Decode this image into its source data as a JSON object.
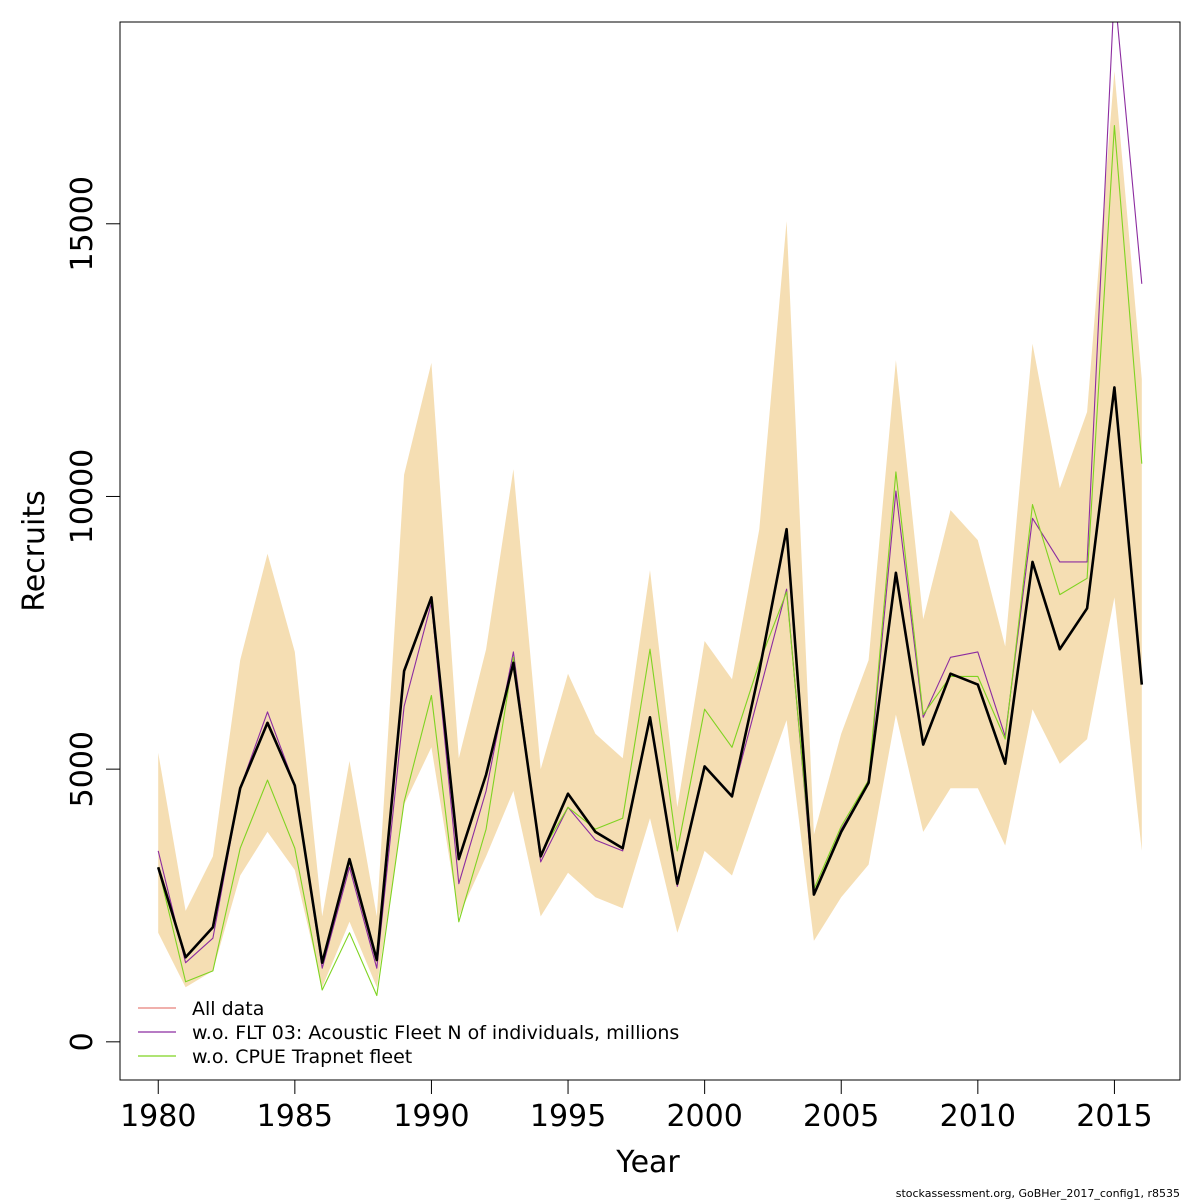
{
  "chart_data": {
    "type": "line",
    "xlabel": "Year",
    "ylabel": "Recruits",
    "xlim": [
      1978.6,
      2017.4
    ],
    "ylim": [
      -700,
      18700
    ],
    "x_ticks": [
      1980,
      1985,
      1990,
      1995,
      2000,
      2005,
      2010,
      2015
    ],
    "x_tick_labels": [
      "1980",
      "1985",
      "1990",
      "1995",
      "2000",
      "2005",
      "2010",
      "2015"
    ],
    "y_ticks": [
      0,
      5000,
      10000,
      15000
    ],
    "y_tick_labels": [
      "0",
      "5000",
      "10000",
      "15000"
    ],
    "x": [
      1980,
      1981,
      1982,
      1983,
      1984,
      1985,
      1986,
      1987,
      1988,
      1989,
      1990,
      1991,
      1992,
      1993,
      1994,
      1995,
      1996,
      1997,
      1998,
      1999,
      2000,
      2001,
      2002,
      2003,
      2004,
      2005,
      2006,
      2007,
      2008,
      2009,
      2010,
      2011,
      2012,
      2013,
      2014,
      2015,
      2016
    ],
    "band": {
      "lower": [
        2000,
        1000,
        1300,
        3050,
        3850,
        3150,
        1000,
        2200,
        1000,
        4350,
        5400,
        2300,
        3400,
        4600,
        2300,
        3100,
        2650,
        2450,
        4100,
        2000,
        3500,
        3050,
        4500,
        5900,
        1850,
        2650,
        3250,
        6000,
        3850,
        4650,
        4650,
        3600,
        6100,
        5100,
        5550,
        8150,
        3500
      ],
      "upper": [
        5300,
        2400,
        3400,
        7000,
        8950,
        7150,
        2300,
        5150,
        2300,
        10400,
        12450,
        5200,
        7200,
        10500,
        5000,
        6750,
        5650,
        5200,
        8650,
        4300,
        7350,
        6650,
        9400,
        15050,
        3800,
        5650,
        7000,
        12500,
        7750,
        9750,
        9200,
        7250,
        12800,
        10150,
        11550,
        17800,
        12150
      ],
      "color": "#f5deb3"
    },
    "series": [
      {
        "name": "All data",
        "color": "#e8807a",
        "values": [
          3200,
          1550,
          2100,
          4650,
          5850,
          4700,
          1450,
          3350,
          1500,
          6800,
          8150,
          3350,
          4900,
          6950,
          3400,
          4550,
          3850,
          3550,
          5950,
          2900,
          5050,
          4500,
          6800,
          9400,
          2700,
          3850,
          4750,
          8600,
          5450,
          6750,
          6550,
          5100,
          8800,
          7200,
          7950,
          12000,
          6550
        ]
      },
      {
        "name": "w.o. FLT 03: Acoustic Fleet   N of individuals, millions",
        "color": "#8c2ca0",
        "values": [
          3500,
          1450,
          1900,
          4650,
          6050,
          4700,
          1350,
          3200,
          1350,
          6150,
          8050,
          2900,
          4600,
          7150,
          3300,
          4300,
          3700,
          3500,
          5950,
          2850,
          5050,
          4500,
          6400,
          8300,
          2700,
          3900,
          4750,
          10100,
          5950,
          7050,
          7150,
          5600,
          9600,
          8800,
          8800,
          19300,
          13900
        ]
      },
      {
        "name": "w.o. CPUE Trapnet fleet",
        "color": "#7fd321",
        "values": [
          3200,
          1100,
          1300,
          3550,
          4800,
          3550,
          950,
          2000,
          850,
          4400,
          6350,
          2200,
          3900,
          7050,
          3450,
          4300,
          3900,
          4100,
          7200,
          3500,
          6100,
          5400,
          6950,
          8250,
          2800,
          3950,
          4800,
          10450,
          6000,
          6700,
          6700,
          5550,
          9850,
          8200,
          8500,
          16800,
          10600
        ]
      },
      {
        "name": "",
        "color": "#000000",
        "values": [
          3200,
          1550,
          2100,
          4650,
          5850,
          4700,
          1450,
          3350,
          1500,
          6800,
          8150,
          3350,
          4900,
          6950,
          3400,
          4550,
          3850,
          3550,
          5950,
          2900,
          5050,
          4500,
          6800,
          9400,
          2700,
          3850,
          4750,
          8600,
          5450,
          6750,
          6550,
          5100,
          8800,
          7200,
          7950,
          12000,
          6550
        ]
      }
    ],
    "legend": {
      "position": "bottom-left",
      "entries": [
        {
          "label": "All data",
          "color": "#e8807a"
        },
        {
          "label": "w.o. FLT 03: Acoustic Fleet   N of individuals, millions",
          "color": "#8c2ca0"
        },
        {
          "label": "w.o. CPUE Trapnet fleet",
          "color": "#7fd321"
        }
      ]
    }
  },
  "footer": "stockassessment.org, GoBHer_2017_config1, r8535"
}
